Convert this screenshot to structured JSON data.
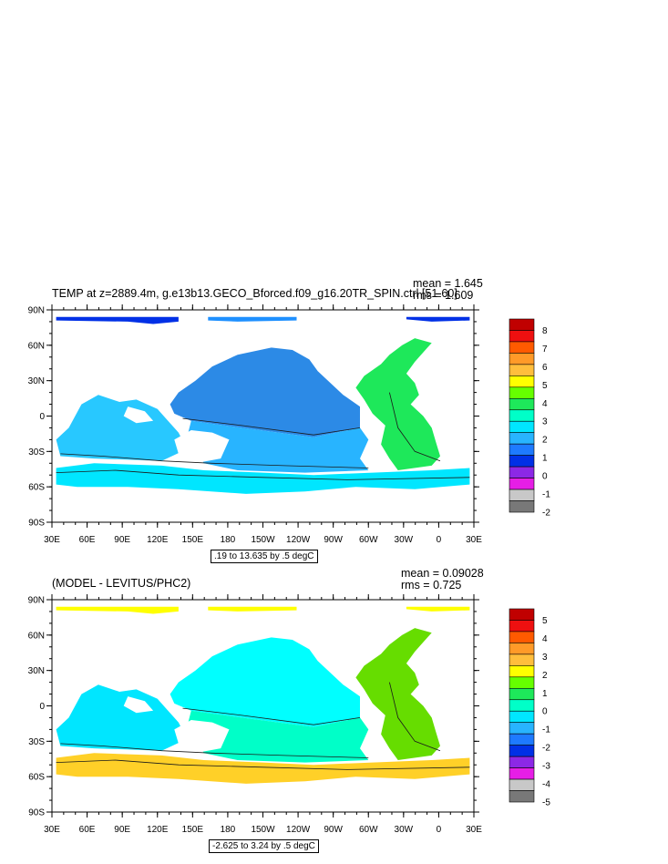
{
  "chart_data": [
    {
      "type": "heatmap",
      "title": "TEMP at z=2889.4m, g.e13b13.GECO_Bforced.f09_g16.20TR_SPIN.ctrl [51-60]",
      "mean_label": "mean = 1.645",
      "rms_label": "rms = 1.609",
      "range_label": ".19 to 13.635 by .5 degC",
      "x_ticks": [
        "30E",
        "60E",
        "90E",
        "120E",
        "150E",
        "180",
        "150W",
        "120W",
        "90W",
        "60W",
        "30W",
        "0",
        "30E"
      ],
      "y_ticks": [
        "90N",
        "60N",
        "30N",
        "0",
        "30S",
        "60S",
        "90S"
      ],
      "legend_labels": [
        "8",
        "7",
        "6",
        "5",
        "4",
        "3",
        "2",
        "1",
        "0",
        "-1",
        "-2"
      ],
      "legend_colors": [
        "#c00000",
        "#ee1010",
        "#ff5a00",
        "#ff9a28",
        "#ffbe3c",
        "#ffff00",
        "#66ff00",
        "#1ee85a",
        "#00ffc8",
        "#00e6ff",
        "#28b4ff",
        "#1e7aff",
        "#0030e6",
        "#8c28e6",
        "#e61ee6",
        "#c8c8c8",
        "#787878"
      ],
      "regions": {
        "pacific_north": "#2c8ae6",
        "pacific_south": "#28b4ff",
        "atlantic": "#1ee85a",
        "indian": "#28c8ff",
        "southern_band": "#00e6ff",
        "arctic": "#0030e6"
      }
    },
    {
      "type": "heatmap",
      "title": "(MODEL - LEVITUS/PHC2)",
      "mean_label": "mean = 0.09028",
      "rms_label": "rms = 0.725",
      "range_label": "-2.625 to 3.24 by .5 degC",
      "x_ticks": [
        "30E",
        "60E",
        "90E",
        "120E",
        "150E",
        "180",
        "150W",
        "120W",
        "90W",
        "60W",
        "30W",
        "0",
        "30E"
      ],
      "y_ticks": [
        "90N",
        "60N",
        "30N",
        "0",
        "30S",
        "60S",
        "90S"
      ],
      "legend_labels": [
        "5",
        "4",
        "3",
        "2",
        "1",
        "0",
        "-1",
        "-2",
        "-3",
        "-4",
        "-5"
      ],
      "legend_colors": [
        "#c00000",
        "#ee1010",
        "#ff5a00",
        "#ff9a28",
        "#ffbe3c",
        "#ffff00",
        "#66ff00",
        "#1ee85a",
        "#00ffc8",
        "#00e6ff",
        "#28b4ff",
        "#1e7aff",
        "#0030e6",
        "#8c28e6",
        "#e61ee6",
        "#c8c8c8",
        "#787878"
      ],
      "regions": {
        "pacific_north": "#00ffff",
        "pacific_south": "#00ffc8",
        "atlantic": "#66dd00",
        "indian": "#00e6ff",
        "southern_band": "#ffd028",
        "arctic": "#ffff00"
      }
    }
  ]
}
